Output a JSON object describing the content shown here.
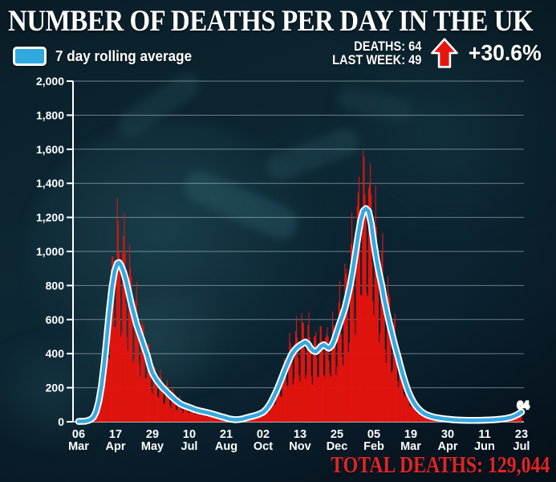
{
  "title": "NUMBER OF DEATHS PER DAY IN THE UK",
  "legend": {
    "label": "7 day rolling average",
    "swatch_color": "#2fa9de"
  },
  "stats": {
    "deaths_line": "DEATHS: 64",
    "last_week_line": "LAST WEEK: 49",
    "change": "+30.6%",
    "arrow_color": "#e8150f"
  },
  "footer": {
    "total_line": "TOTAL DEATHS: 129,044",
    "color": "#e32424"
  },
  "chart_data": {
    "type": "bar",
    "title": "NUMBER OF DEATHS PER DAY IN THE UK",
    "ylim": [
      0,
      2000
    ],
    "grid": true,
    "total_days": 504,
    "x_tick_interval_days": 42,
    "x_ticks": [
      [
        "06",
        "Mar"
      ],
      [
        "17",
        "Apr"
      ],
      [
        "29",
        "May"
      ],
      [
        "10",
        "Jul"
      ],
      [
        "21",
        "Aug"
      ],
      [
        "02",
        "Oct"
      ],
      [
        "13",
        "Nov"
      ],
      [
        "25",
        "Dec"
      ],
      [
        "05",
        "Feb"
      ],
      [
        "19",
        "Mar"
      ],
      [
        "30",
        "Apr"
      ],
      [
        "11",
        "Jun"
      ],
      [
        "23",
        "Jul"
      ]
    ],
    "y_ticks": [
      "0",
      "200",
      "400",
      "600",
      "800",
      "1,000",
      "1,200",
      "1,400",
      "1,600",
      "1,800",
      "2,000"
    ],
    "end_label": "64",
    "end_label_color": "#8e2022",
    "series": [
      {
        "name": "Daily deaths",
        "type": "bar",
        "color": "#e8130d",
        "weekly_pattern": [
          0.58,
          1.02,
          1.28,
          1.3,
          1.16,
          0.92,
          0.6
        ]
      },
      {
        "name": "7 day rolling average",
        "type": "line",
        "color": "#36a9e1",
        "outline_color": "#ffffff",
        "points": [
          [
            0,
            2
          ],
          [
            7,
            3
          ],
          [
            10,
            6
          ],
          [
            14,
            14
          ],
          [
            17,
            28
          ],
          [
            20,
            60
          ],
          [
            23,
            120
          ],
          [
            26,
            210
          ],
          [
            29,
            340
          ],
          [
            32,
            490
          ],
          [
            35,
            650
          ],
          [
            38,
            790
          ],
          [
            41,
            885
          ],
          [
            44,
            930
          ],
          [
            46,
            935
          ],
          [
            48,
            920
          ],
          [
            51,
            880
          ],
          [
            54,
            830
          ],
          [
            57,
            760
          ],
          [
            60,
            690
          ],
          [
            63,
            630
          ],
          [
            66,
            570
          ],
          [
            70,
            510
          ],
          [
            74,
            450
          ],
          [
            78,
            390
          ],
          [
            81,
            330
          ],
          [
            84,
            285
          ],
          [
            88,
            250
          ],
          [
            92,
            222
          ],
          [
            96,
            198
          ],
          [
            100,
            178
          ],
          [
            105,
            152
          ],
          [
            110,
            128
          ],
          [
            115,
            108
          ],
          [
            120,
            95
          ],
          [
            126,
            84
          ],
          [
            133,
            70
          ],
          [
            140,
            61
          ],
          [
            147,
            53
          ],
          [
            154,
            43
          ],
          [
            161,
            32
          ],
          [
            168,
            22
          ],
          [
            172,
            16
          ],
          [
            178,
            12
          ],
          [
            182,
            13
          ],
          [
            186,
            16
          ],
          [
            190,
            22
          ],
          [
            196,
            30
          ],
          [
            202,
            38
          ],
          [
            206,
            46
          ],
          [
            210,
            56
          ],
          [
            214,
            76
          ],
          [
            218,
            106
          ],
          [
            222,
            146
          ],
          [
            226,
            190
          ],
          [
            230,
            242
          ],
          [
            234,
            296
          ],
          [
            238,
            346
          ],
          [
            242,
            392
          ],
          [
            246,
            422
          ],
          [
            250,
            442
          ],
          [
            254,
            456
          ],
          [
            258,
            468
          ],
          [
            261,
            456
          ],
          [
            264,
            432
          ],
          [
            267,
            416
          ],
          [
            270,
            412
          ],
          [
            273,
            426
          ],
          [
            276,
            444
          ],
          [
            279,
            452
          ],
          [
            282,
            440
          ],
          [
            285,
            432
          ],
          [
            288,
            446
          ],
          [
            291,
            480
          ],
          [
            294,
            530
          ],
          [
            297,
            576
          ],
          [
            300,
            620
          ],
          [
            303,
            668
          ],
          [
            306,
            730
          ],
          [
            309,
            800
          ],
          [
            312,
            888
          ],
          [
            315,
            988
          ],
          [
            318,
            1092
          ],
          [
            321,
            1182
          ],
          [
            324,
            1238
          ],
          [
            327,
            1252
          ],
          [
            330,
            1236
          ],
          [
            333,
            1164
          ],
          [
            336,
            1048
          ],
          [
            339,
            952
          ],
          [
            342,
            872
          ],
          [
            345,
            800
          ],
          [
            348,
            716
          ],
          [
            351,
            640
          ],
          [
            354,
            572
          ],
          [
            357,
            508
          ],
          [
            360,
            446
          ],
          [
            363,
            390
          ],
          [
            366,
            330
          ],
          [
            369,
            275
          ],
          [
            372,
            225
          ],
          [
            375,
            180
          ],
          [
            378,
            145
          ],
          [
            381,
            115
          ],
          [
            384,
            92
          ],
          [
            387,
            74
          ],
          [
            390,
            60
          ],
          [
            394,
            46
          ],
          [
            398,
            37
          ],
          [
            402,
            30
          ],
          [
            406,
            25
          ],
          [
            410,
            22
          ],
          [
            415,
            18
          ],
          [
            420,
            15
          ],
          [
            426,
            12
          ],
          [
            432,
            10
          ],
          [
            438,
            9
          ],
          [
            445,
            8
          ],
          [
            452,
            8
          ],
          [
            459,
            9
          ],
          [
            466,
            10
          ],
          [
            473,
            12
          ],
          [
            480,
            15
          ],
          [
            486,
            19
          ],
          [
            492,
            26
          ],
          [
            496,
            33
          ],
          [
            500,
            44
          ],
          [
            504,
            57
          ]
        ]
      }
    ]
  }
}
